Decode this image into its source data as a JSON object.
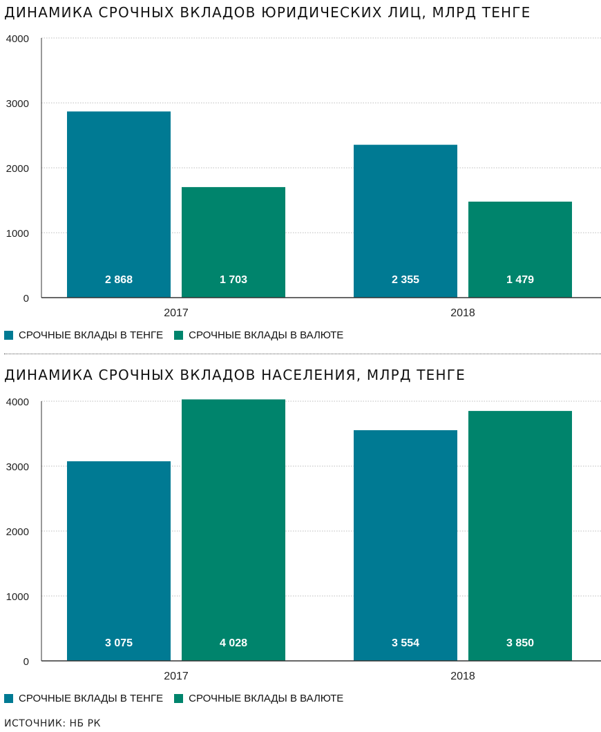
{
  "colors": {
    "tenge": "#007a93",
    "currency": "#00846c",
    "grid": "#bbbbbb",
    "axis": "#333333",
    "label_text": "#ffffff"
  },
  "chart_data": [
    {
      "type": "bar",
      "title": "ДИНАМИКА СРОЧНЫХ ВКЛАДОВ ЮРИДИЧЕСКИХ ЛИЦ, МЛРД ТЕНГЕ",
      "categories": [
        "2017",
        "2018"
      ],
      "series": [
        {
          "name": "СРОЧНЫЕ ВКЛАДЫ В ТЕНГЕ",
          "values": [
            2868,
            2355
          ],
          "labels": [
            "2 868",
            "2 355"
          ]
        },
        {
          "name": "СРОЧНЫЕ ВКЛАДЫ В ВАЛЮТЕ",
          "values": [
            1703,
            1479
          ],
          "labels": [
            "1 703",
            "1 479"
          ]
        }
      ],
      "ylim": [
        0,
        4000
      ],
      "yticks": [
        "0",
        "1000",
        "2000",
        "3000",
        "4000"
      ],
      "grid": true,
      "legend": "bottom-left"
    },
    {
      "type": "bar",
      "title": "ДИНАМИКА СРОЧНЫХ ВКЛАДОВ НАСЕЛЕНИЯ, МЛРД ТЕНГЕ",
      "categories": [
        "2017",
        "2018"
      ],
      "series": [
        {
          "name": "СРОЧНЫЕ ВКЛАДЫ В ТЕНГЕ",
          "values": [
            3075,
            3554
          ],
          "labels": [
            "3 075",
            "3 554"
          ]
        },
        {
          "name": "СРОЧНЫЕ ВКЛАДЫ В ВАЛЮТЕ",
          "values": [
            4028,
            3850
          ],
          "labels": [
            "4 028",
            "3 850"
          ]
        }
      ],
      "ylim": [
        0,
        4000
      ],
      "yticks": [
        "0",
        "1000",
        "2000",
        "3000",
        "4000"
      ],
      "grid": true,
      "legend": "bottom-left"
    }
  ],
  "source": "ИСТОЧНИК: НБ РК"
}
